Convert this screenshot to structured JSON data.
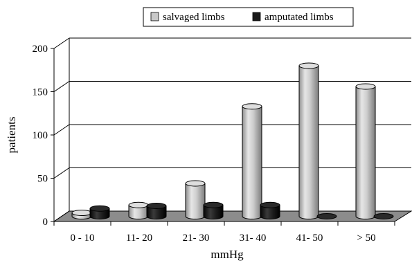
{
  "chart_data": {
    "type": "bar",
    "style": "3d-cylinder",
    "categories": [
      "0 - 10",
      "11- 20",
      "21- 30",
      "31- 40",
      "41- 50",
      "> 50"
    ],
    "series": [
      {
        "name": "salvaged limbs",
        "values": [
          4,
          13,
          38,
          127,
          174,
          150
        ],
        "color": "#c8c8c8"
      },
      {
        "name": "amputated limbs",
        "values": [
          9,
          12,
          13,
          13,
          0,
          0
        ],
        "color": "#1a1a1a"
      }
    ],
    "title": "",
    "xlabel": "mmHg",
    "ylabel": "patients",
    "ylim": [
      0,
      200
    ],
    "yticks": [
      0,
      50,
      100,
      150,
      200
    ],
    "grid": true,
    "legend_position": "top-right"
  }
}
